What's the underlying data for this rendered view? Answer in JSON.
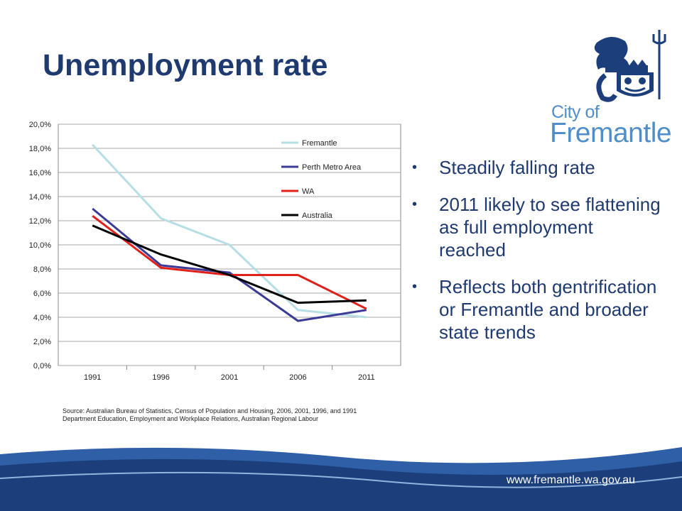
{
  "slide": {
    "title": "Unemployment rate",
    "website": "www.fremantle.wa.gov.au"
  },
  "logo": {
    "city_text": "City of",
    "name_text": "Fremantle",
    "icon": "city-crest-icon"
  },
  "bullets": [
    "Steadily falling rate",
    " 2011 likely to see flattening as full employment reached",
    "Reflects both gentrification or Fremantle and broader state trends"
  ],
  "source": {
    "line1": "Source: Australian Bureau of Statistics, Census of Population and Housing, 2006, 2001, 1996, and 1991",
    "line2": "Department Education,  Employment  and Workplace Relations, Australian Regional Labour"
  },
  "colors": {
    "title": "#1f3a6e",
    "fremantle": "#b7dde5",
    "perth": "#3b3a95",
    "wa": "#e0211b",
    "australia": "#000000",
    "footer_dark": "#1c3f7c",
    "footer_light": "#2e5fa7"
  },
  "chart_data": {
    "type": "line",
    "categories": [
      "1991",
      "1996",
      "2001",
      "2006",
      "2011"
    ],
    "y_ticks": [
      "0,0%",
      "2,0%",
      "4,0%",
      "6,0%",
      "8,0%",
      "10,0%",
      "12,0%",
      "14,0%",
      "16,0%",
      "18,0%",
      "20,0%"
    ],
    "ylim": [
      0,
      20
    ],
    "grid": "horizontal",
    "legend_position": "top-right",
    "series": [
      {
        "name": "Fremantle",
        "color": "#b7dde5",
        "values": [
          18.3,
          12.2,
          10.0,
          4.6,
          4.0
        ]
      },
      {
        "name": "Perth Metro Area",
        "color": "#3b3a95",
        "values": [
          13.0,
          8.3,
          7.7,
          3.7,
          4.6
        ]
      },
      {
        "name": "WA",
        "color": "#e0211b",
        "values": [
          12.4,
          8.1,
          7.5,
          7.5,
          4.7
        ]
      },
      {
        "name": "Australia",
        "color": "#000000",
        "values": [
          11.6,
          9.2,
          7.5,
          5.2,
          5.4
        ]
      }
    ]
  }
}
